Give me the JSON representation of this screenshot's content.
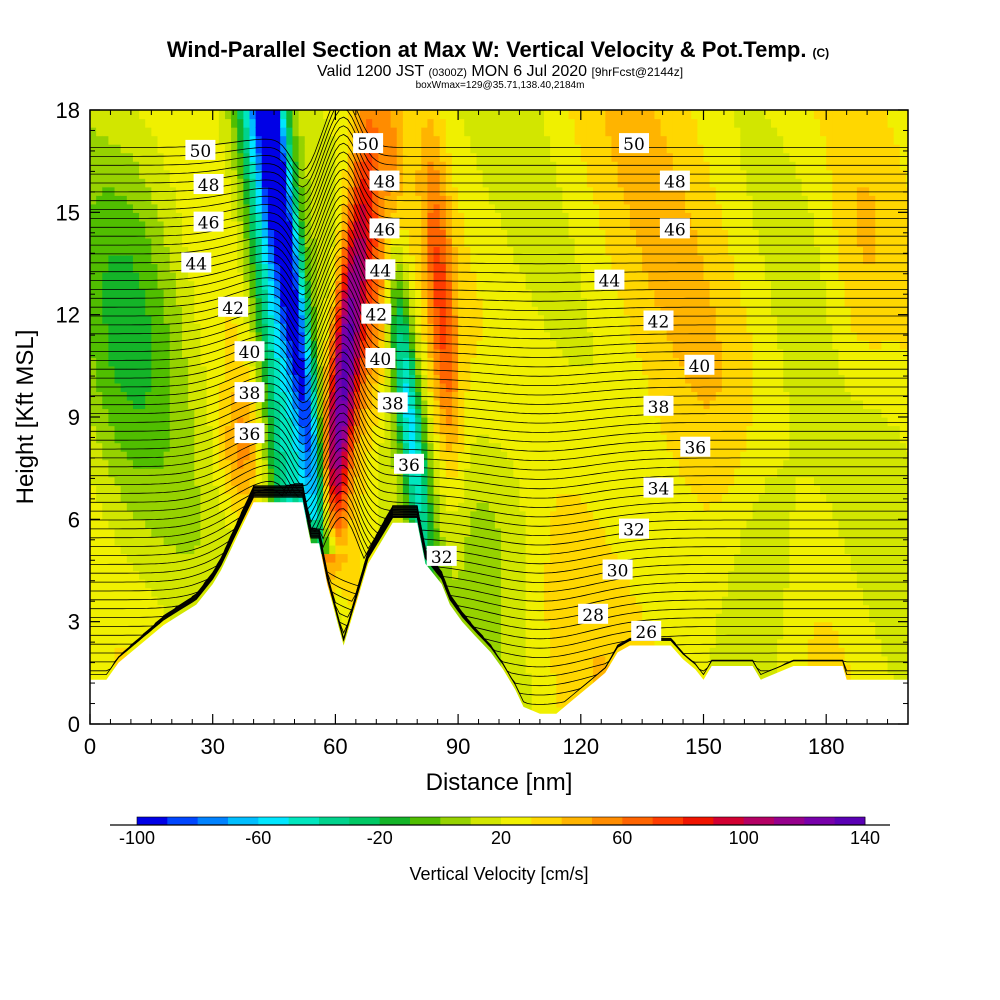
{
  "title": {
    "main": "Wind-Parallel Section at Max W: Vertical Velocity & Pot.Temp.",
    "copyright": "(C)",
    "valid_prefix": "Valid 1200 JST",
    "valid_utc": "(0300Z)",
    "valid_date": "MON 6 Jul 2020",
    "forecast": "[9hrFcst@2144z]",
    "box_info": "boxWmax=129@35.71,138.40,2184m"
  },
  "chart_data": {
    "type": "heatmap",
    "xlabel": "Distance [nm]",
    "ylabel": "Height [Kft MSL]",
    "xlim": [
      0,
      200
    ],
    "ylim": [
      0,
      18
    ],
    "x_ticks": [
      0,
      30,
      60,
      90,
      120,
      150,
      180
    ],
    "y_ticks": [
      0,
      3,
      6,
      9,
      12,
      15,
      18
    ],
    "colorbar": {
      "title": "Vertical Velocity [cm/s]",
      "min": -100,
      "max": 140,
      "tick_labels": [
        -100,
        -60,
        -20,
        20,
        60,
        100,
        140
      ],
      "colors": [
        "#0000e6",
        "#0046ff",
        "#0082ff",
        "#00beff",
        "#00e6ff",
        "#00e6be",
        "#00d28c",
        "#00c864",
        "#14b428",
        "#50be00",
        "#96d200",
        "#d2e600",
        "#f0f000",
        "#ffd700",
        "#ffb400",
        "#ff8c00",
        "#ff6400",
        "#ff3c00",
        "#f01400",
        "#d20032",
        "#b40064",
        "#96008c",
        "#7800aa",
        "#5a00b4"
      ]
    },
    "theta_contour_labels": [
      {
        "value": "50",
        "x": 27,
        "z": 16.8
      },
      {
        "value": "48",
        "x": 29,
        "z": 15.8
      },
      {
        "value": "46",
        "x": 29,
        "z": 14.7
      },
      {
        "value": "44",
        "x": 26,
        "z": 13.5
      },
      {
        "value": "42",
        "x": 35,
        "z": 12.2
      },
      {
        "value": "40",
        "x": 39,
        "z": 10.9
      },
      {
        "value": "38",
        "x": 39,
        "z": 9.7
      },
      {
        "value": "36",
        "x": 39,
        "z": 8.5
      },
      {
        "value": "50",
        "x": 68,
        "z": 17.0
      },
      {
        "value": "48",
        "x": 72,
        "z": 15.9
      },
      {
        "value": "46",
        "x": 72,
        "z": 14.5
      },
      {
        "value": "44",
        "x": 71,
        "z": 13.3
      },
      {
        "value": "42",
        "x": 70,
        "z": 12.0
      },
      {
        "value": "40",
        "x": 71,
        "z": 10.7
      },
      {
        "value": "38",
        "x": 74,
        "z": 9.4
      },
      {
        "value": "36",
        "x": 78,
        "z": 7.6
      },
      {
        "value": "32",
        "x": 86,
        "z": 4.9
      },
      {
        "value": "50",
        "x": 133,
        "z": 17.0
      },
      {
        "value": "48",
        "x": 143,
        "z": 15.9
      },
      {
        "value": "46",
        "x": 143,
        "z": 14.5
      },
      {
        "value": "44",
        "x": 127,
        "z": 13.0
      },
      {
        "value": "42",
        "x": 139,
        "z": 11.8
      },
      {
        "value": "40",
        "x": 149,
        "z": 10.5
      },
      {
        "value": "38",
        "x": 139,
        "z": 9.3
      },
      {
        "value": "36",
        "x": 148,
        "z": 8.1
      },
      {
        "value": "34",
        "x": 139,
        "z": 6.9
      },
      {
        "value": "32",
        "x": 133,
        "z": 5.7
      },
      {
        "value": "30",
        "x": 129,
        "z": 4.5
      },
      {
        "value": "28",
        "x": 123,
        "z": 3.2
      },
      {
        "value": "26",
        "x": 136,
        "z": 2.7
      }
    ],
    "terrain": [
      [
        0,
        1.3
      ],
      [
        4,
        1.3
      ],
      [
        7,
        1.8
      ],
      [
        10,
        2.1
      ],
      [
        14,
        2.5
      ],
      [
        18,
        2.9
      ],
      [
        22,
        3.2
      ],
      [
        26,
        3.5
      ],
      [
        28,
        3.8
      ],
      [
        30,
        4.1
      ],
      [
        32,
        4.5
      ],
      [
        34,
        5.0
      ],
      [
        36,
        5.5
      ],
      [
        38,
        6.0
      ],
      [
        40,
        6.5
      ],
      [
        52,
        6.5
      ],
      [
        54,
        5.3
      ],
      [
        56,
        5.3
      ],
      [
        58,
        4.1
      ],
      [
        62,
        2.3
      ],
      [
        65,
        3.5
      ],
      [
        68,
        4.7
      ],
      [
        71,
        5.3
      ],
      [
        74,
        5.9
      ],
      [
        80,
        5.9
      ],
      [
        82,
        4.7
      ],
      [
        86,
        4.1
      ],
      [
        88,
        3.5
      ],
      [
        91,
        3.0
      ],
      [
        94,
        2.6
      ],
      [
        98,
        2.1
      ],
      [
        101,
        1.6
      ],
      [
        104,
        1.0
      ],
      [
        106,
        0.5
      ],
      [
        110,
        0.3
      ],
      [
        114,
        0.3
      ],
      [
        117,
        0.6
      ],
      [
        120,
        0.9
      ],
      [
        123,
        1.2
      ],
      [
        126,
        1.5
      ],
      [
        129,
        2.1
      ],
      [
        132,
        2.3
      ],
      [
        142,
        2.3
      ],
      [
        145,
        1.9
      ],
      [
        148,
        1.6
      ],
      [
        150,
        1.3
      ],
      [
        152,
        1.7
      ],
      [
        162,
        1.7
      ],
      [
        164,
        1.3
      ],
      [
        166,
        1.4
      ],
      [
        172,
        1.7
      ],
      [
        184,
        1.7
      ],
      [
        185,
        1.3
      ],
      [
        200,
        1.3
      ]
    ],
    "updrafts": [
      {
        "center": [
          62,
          10.8
        ],
        "value": 135
      },
      {
        "center": [
          65,
          13.5
        ],
        "value": 95
      },
      {
        "center": [
          54,
          6.0
        ],
        "value": -95
      },
      {
        "center": [
          48,
          11.0
        ],
        "value": -65
      },
      {
        "center": [
          80,
          8.0
        ],
        "value": -55
      },
      {
        "center": [
          85,
          11.5
        ],
        "value": 50
      }
    ]
  }
}
